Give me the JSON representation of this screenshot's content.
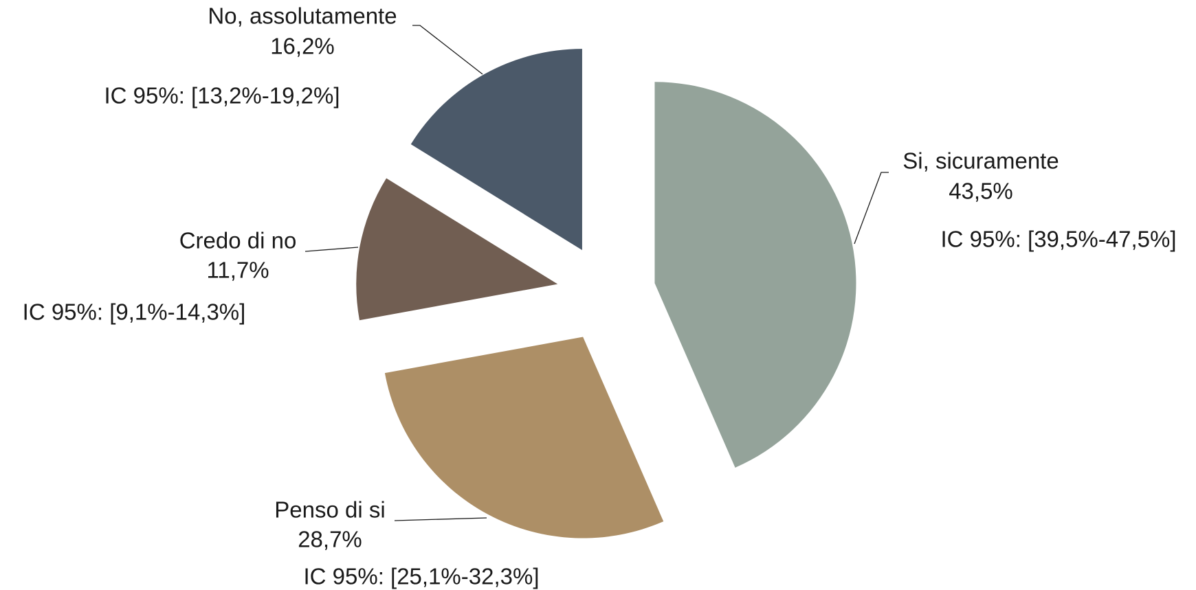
{
  "chart_data": {
    "type": "pie",
    "categories": [
      "Si, sicuramente",
      "Penso di si",
      "Credo di no",
      "No, assolutamente"
    ],
    "values": [
      43.5,
      28.7,
      11.7,
      16.2
    ],
    "value_labels": [
      "43,5%",
      "28,7%",
      "11,7%",
      "16,2%"
    ],
    "intervals": [
      "IC 95%: [39,5%-47,5%]",
      "IC 95%: [25,1%-32,3%]",
      "IC 95%: [9,1%-14,3%]",
      "IC 95%: [13,2%-19,2%]"
    ],
    "colors": [
      "#94a39a",
      "#ad8f66",
      "#715e52",
      "#4b5969"
    ],
    "exploded": true
  }
}
